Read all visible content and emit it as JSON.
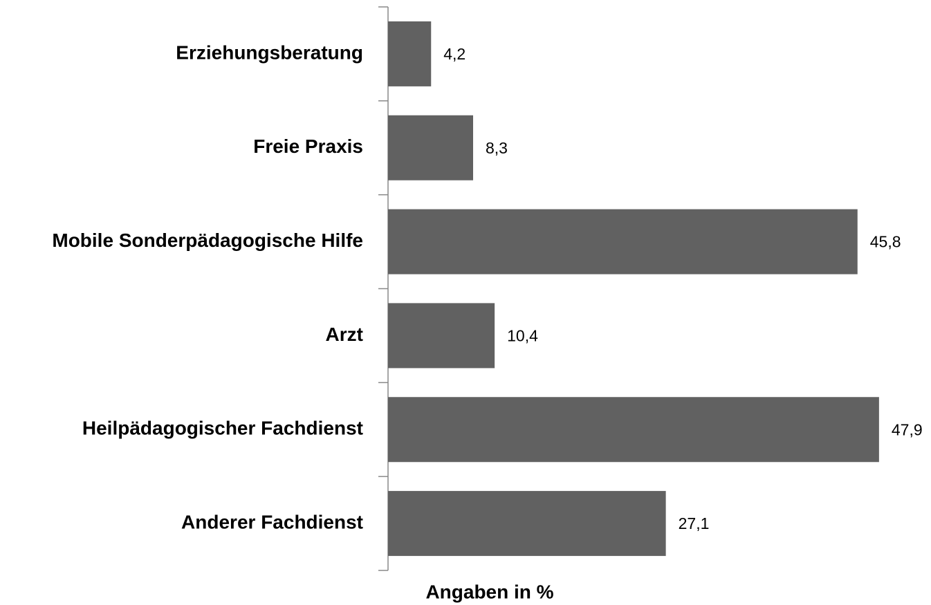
{
  "chart_data": {
    "type": "barh",
    "categories": [
      "Erziehungsberatung",
      "Freie Praxis",
      "Mobile Sonderpädagogische Hilfe",
      "Arzt",
      "Heilpädagogischer Fachdienst",
      "Anderer Fachdienst"
    ],
    "values": [
      4.2,
      8.3,
      45.8,
      10.4,
      47.9,
      27.1
    ],
    "value_labels": [
      "4,2",
      "8,3",
      "45,8",
      "10,4",
      "47,9",
      "27,1"
    ],
    "color": "#616161",
    "xlim": [
      0,
      50
    ],
    "x_label": "Angaben in %"
  }
}
